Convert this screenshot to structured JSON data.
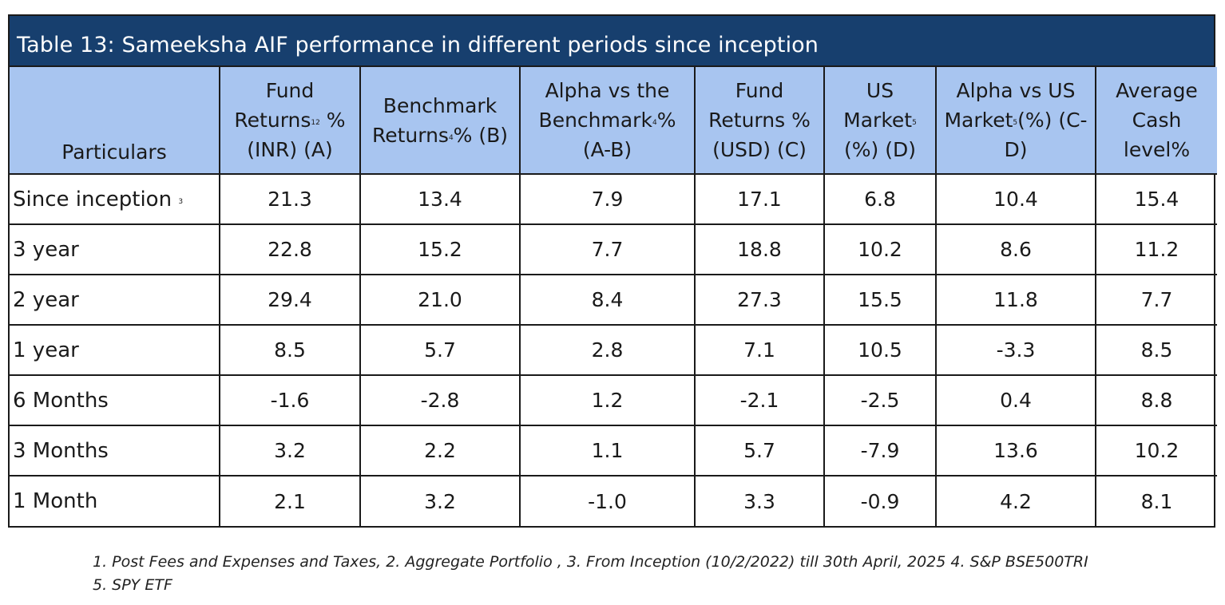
{
  "table": {
    "title": "Table 13: Sameeksha AIF performance in different periods since inception",
    "headers": [
      {
        "pre": "Particulars",
        "sup": "",
        "post": ""
      },
      {
        "pre": "Fund Returns",
        "sup": "12",
        "post": " % (INR) (A)"
      },
      {
        "pre": "Benchmark Returns",
        "sup": "4",
        "post": "% (B)"
      },
      {
        "pre": "Alpha vs the Benchmark",
        "sup": "4",
        "post": "% (A-B)"
      },
      {
        "pre": "Fund Returns % (USD) (C)",
        "sup": "",
        "post": ""
      },
      {
        "pre": "US Market",
        "sup": "5",
        "post": " (%) (D)"
      },
      {
        "pre": "Alpha vs US Market",
        "sup": "5",
        "post": "(%) (C-D)"
      },
      {
        "pre": "Average Cash level%",
        "sup": "",
        "post": ""
      }
    ],
    "rows": [
      {
        "label": "Since inception",
        "label_sup": "3",
        "values": [
          "21.3",
          "13.4",
          "7.9",
          "17.1",
          "6.8",
          "10.4",
          "15.4"
        ]
      },
      {
        "label": "3 year",
        "label_sup": "",
        "values": [
          "22.8",
          "15.2",
          "7.7",
          "18.8",
          "10.2",
          "8.6",
          "11.2"
        ]
      },
      {
        "label": "2 year",
        "label_sup": "",
        "values": [
          "29.4",
          "21.0",
          "8.4",
          "27.3",
          "15.5",
          "11.8",
          "7.7"
        ]
      },
      {
        "label": "1 year",
        "label_sup": "",
        "values": [
          "8.5",
          "5.7",
          "2.8",
          "7.1",
          "10.5",
          "-3.3",
          "8.5"
        ]
      },
      {
        "label": "6 Months",
        "label_sup": "",
        "values": [
          "-1.6",
          "-2.8",
          "1.2",
          "-2.1",
          "-2.5",
          "0.4",
          "8.8"
        ]
      },
      {
        "label": "3 Months",
        "label_sup": "",
        "values": [
          "3.2",
          "2.2",
          "1.1",
          "5.7",
          "-7.9",
          "13.6",
          "10.2"
        ]
      },
      {
        "label": "1 Month",
        "label_sup": "",
        "values": [
          "2.1",
          "3.2",
          "-1.0",
          "3.3",
          "-0.9",
          "4.2",
          "8.1"
        ]
      }
    ]
  },
  "footnote": "1. Post Fees and Expenses and Taxes, 2. Aggregate Portfolio , 3. From Inception (10/2/2022) till 30th April, 2025  4. S&P BSE500TRI 5. SPY ETF",
  "colors": {
    "title_bg": "#173f6e",
    "header_bg": "#a8c5f0",
    "border": "#1a1a1a"
  }
}
